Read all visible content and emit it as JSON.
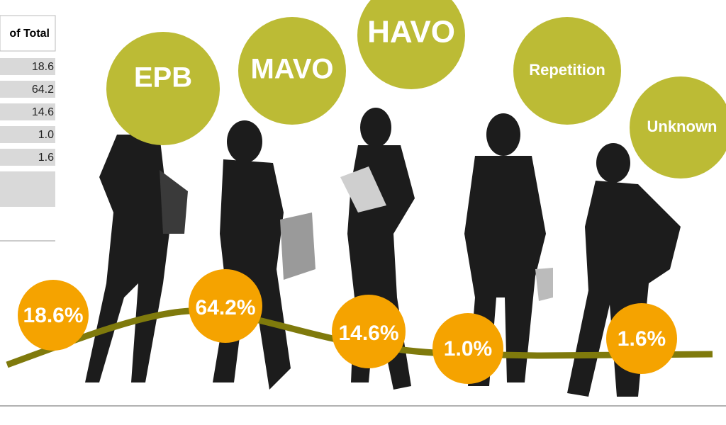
{
  "table": {
    "header": "of Total",
    "rows": [
      "18.6",
      "64.2",
      "14.6",
      "1.0",
      "1.6"
    ]
  },
  "categories": [
    "EPB",
    "MAVO",
    "HAVO",
    "Repetition",
    "Unknown"
  ],
  "percent_labels": [
    "18.6%",
    "64.2%",
    "14.6%",
    "1.0%",
    "1.6%"
  ]
}
